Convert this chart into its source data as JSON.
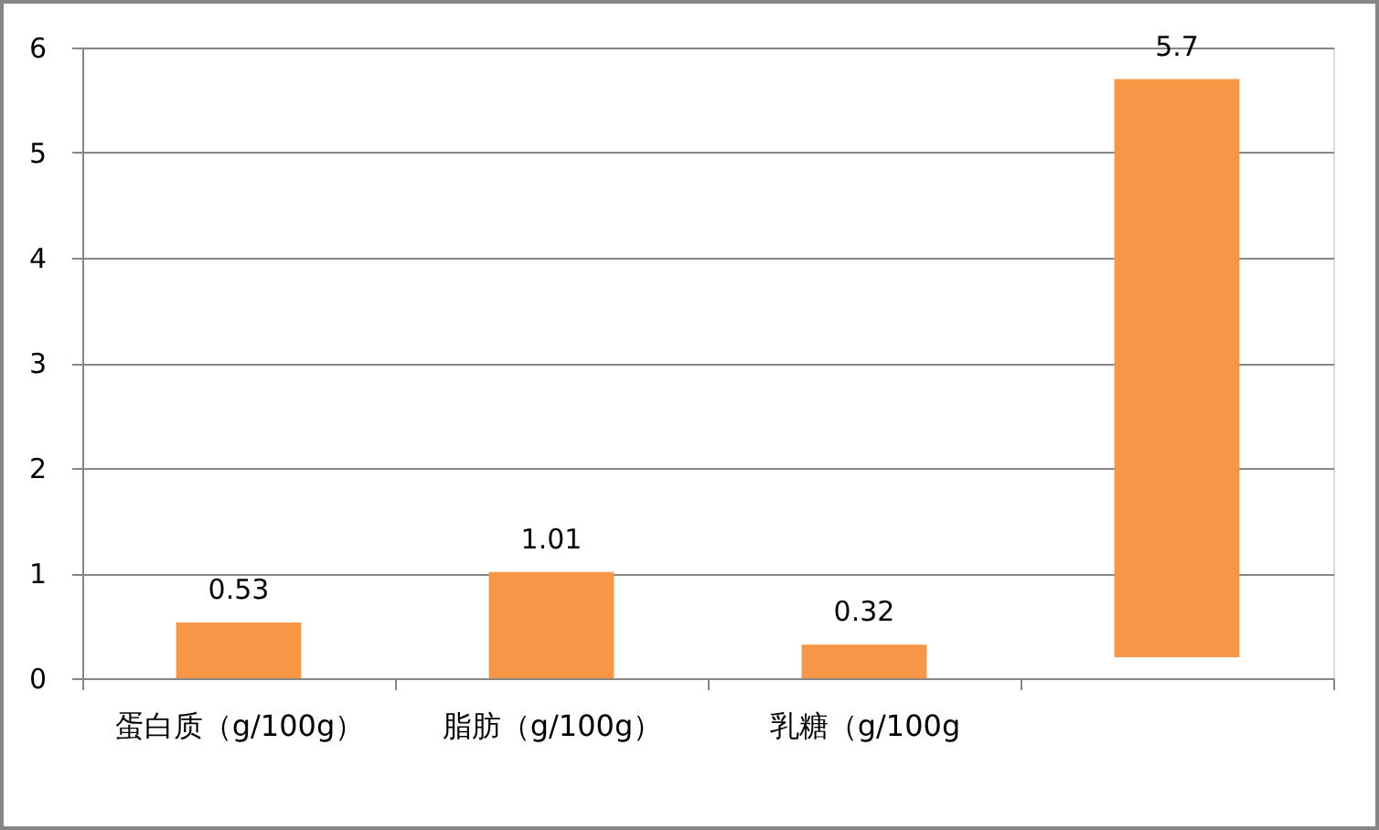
{
  "chart_data": {
    "type": "bar",
    "categories": [
      "蛋白质（g/100g）",
      "脂肪（g/100g）",
      "乳糖（g/100g",
      null
    ],
    "values": [
      0.53,
      1.01,
      0.32,
      5.5
    ],
    "base": [
      0,
      0,
      0,
      0.2
    ],
    "value_labels": [
      "0.53",
      "1.01",
      "0.32",
      "5.7"
    ],
    "color": "#f79646",
    "ylim": [
      0,
      6
    ],
    "yticks": [
      0,
      1,
      2,
      3,
      4,
      5,
      6
    ],
    "grid": "y"
  }
}
